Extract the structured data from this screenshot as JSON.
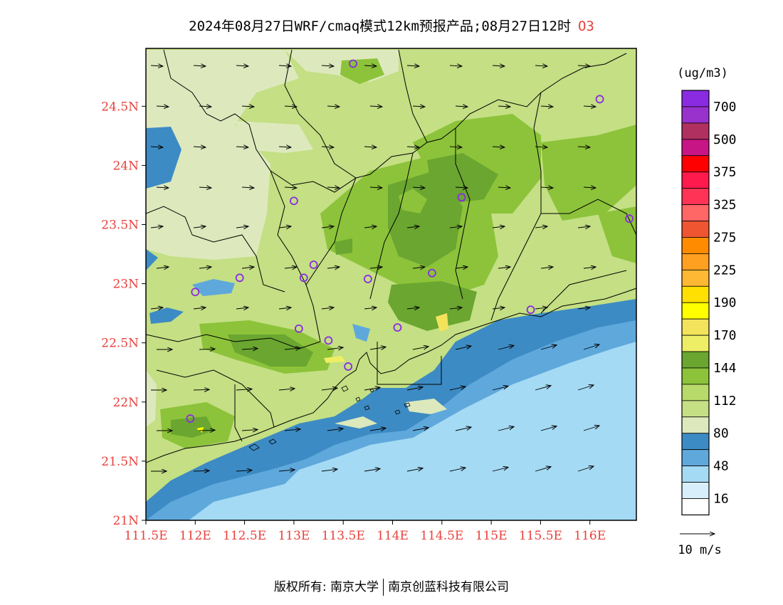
{
  "title": {
    "main": "2024年08月27日WRF/cmaq模式12km预报产品;08月27日12时",
    "species": "O3"
  },
  "map": {
    "lat_ticks": [
      "21N",
      "21.5N",
      "22N",
      "22.5N",
      "23N",
      "23.5N",
      "24N",
      "24.5N"
    ],
    "lon_ticks": [
      "111.5E",
      "112E",
      "112.5E",
      "113E",
      "113.5E",
      "114E",
      "114.5E",
      "115E",
      "115.5E",
      "116E"
    ],
    "tick_color": "#e8413c",
    "stations": [
      {
        "lon": 113.6,
        "lat": 24.86
      },
      {
        "lon": 116.1,
        "lat": 24.56
      },
      {
        "lon": 113.0,
        "lat": 23.7
      },
      {
        "lon": 114.7,
        "lat": 23.73
      },
      {
        "lon": 116.4,
        "lat": 23.55
      },
      {
        "lon": 112.45,
        "lat": 23.05
      },
      {
        "lon": 112.0,
        "lat": 22.93
      },
      {
        "lon": 113.1,
        "lat": 23.05
      },
      {
        "lon": 113.2,
        "lat": 23.16
      },
      {
        "lon": 113.75,
        "lat": 23.04
      },
      {
        "lon": 114.4,
        "lat": 23.09
      },
      {
        "lon": 115.4,
        "lat": 22.78
      },
      {
        "lon": 113.05,
        "lat": 22.62
      },
      {
        "lon": 113.35,
        "lat": 22.52
      },
      {
        "lon": 114.05,
        "lat": 22.63
      },
      {
        "lon": 113.55,
        "lat": 22.3
      },
      {
        "lon": 111.95,
        "lat": 21.86
      }
    ]
  },
  "legend": {
    "unit": "(ug/m3)",
    "labels": [
      "700",
      "500",
      "375",
      "325",
      "275",
      "225",
      "190",
      "170",
      "144",
      "112",
      "80",
      "48",
      "16"
    ],
    "colors": [
      "#8a2be2",
      "#9932cc",
      "#b03060",
      "#c71585",
      "#ff0000",
      "#ff1a4d",
      "#ff3355",
      "#ff6666",
      "#ee5530",
      "#ff8c00",
      "#ffa020",
      "#ffb833",
      "#ffe000",
      "#ffff00",
      "#f3e35c",
      "#eeee66",
      "#6aa630",
      "#8cc33a",
      "#b8da6a",
      "#c4df84",
      "#dde9bd",
      "#3d8bc4",
      "#5fa8dc",
      "#a4daf4",
      "#d8eefa",
      "#ffffff"
    ],
    "wind_ref": "10 m/s"
  },
  "footer": {
    "copyright": "版权所有: 南京大学",
    "company": "南京创蓝科技有限公司"
  }
}
